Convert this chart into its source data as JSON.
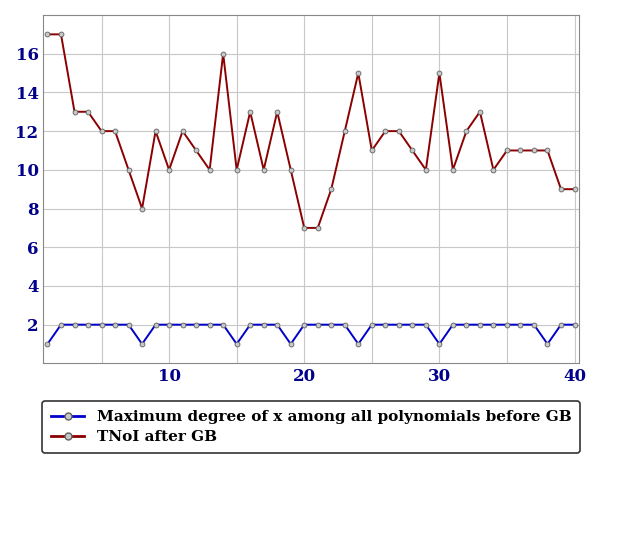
{
  "x": [
    1,
    2,
    3,
    4,
    5,
    6,
    7,
    8,
    9,
    10,
    11,
    12,
    13,
    14,
    15,
    16,
    17,
    18,
    19,
    20,
    21,
    22,
    23,
    24,
    25,
    26,
    27,
    28,
    29,
    30,
    31,
    32,
    33,
    34,
    35,
    36,
    37,
    38,
    39,
    40
  ],
  "red_y": [
    17,
    17,
    13,
    13,
    12,
    12,
    10,
    8,
    12,
    10,
    12,
    11,
    10,
    16,
    10,
    13,
    10,
    13,
    10,
    7,
    7,
    9,
    12,
    15,
    11,
    12,
    12,
    11,
    10,
    15,
    10,
    12,
    13,
    10,
    11,
    11,
    11,
    11,
    9,
    9
  ],
  "blue_y": [
    1,
    2,
    2,
    2,
    2,
    2,
    2,
    1,
    2,
    2,
    2,
    2,
    2,
    2,
    1,
    2,
    2,
    2,
    1,
    2,
    2,
    2,
    2,
    1,
    2,
    2,
    2,
    2,
    2,
    1,
    2,
    2,
    2,
    2,
    2,
    2,
    2,
    1,
    2,
    2
  ],
  "red_color": "#8B0000",
  "blue_color": "#0000CD",
  "grid_color": "#c8c8c8",
  "bg_color": "#ffffff",
  "ylim": [
    0,
    18
  ],
  "xlim_min": 1,
  "xlim_max": 40,
  "yticks": [
    2,
    4,
    6,
    8,
    10,
    12,
    14,
    16
  ],
  "xticks": [
    10,
    20,
    30,
    40
  ],
  "tick_label_color": "#00008B",
  "legend_blue": "Maximum degree of x among all polynomials before GB",
  "legend_red": "TNoI after GB",
  "markersize": 3.5,
  "linewidth": 1.4,
  "tick_fontsize": 12,
  "legend_fontsize": 11
}
